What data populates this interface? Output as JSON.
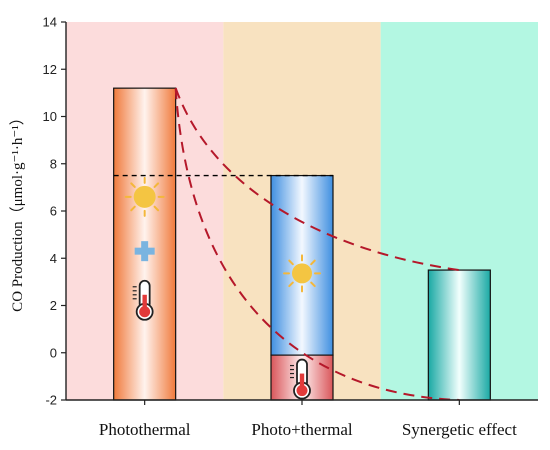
{
  "chart_data": {
    "type": "bar",
    "title": "",
    "xlabel": "",
    "ylabel": "CO Production（μmol·g⁻¹·h⁻¹）",
    "ylim": [
      -2,
      14
    ],
    "yticks": [
      -2,
      0,
      2,
      4,
      6,
      8,
      10,
      12,
      14
    ],
    "categories": [
      "Photothermal",
      "Photo+thermal",
      "Synergetic effect"
    ],
    "bars": [
      {
        "category": "Photothermal",
        "top": 11.2,
        "base": -2,
        "fill": "orange-gradient",
        "icons": [
          "sun-icon",
          "plus-icon",
          "thermometer-icon"
        ]
      },
      {
        "category": "Photo+thermal",
        "segments": [
          {
            "part": "photo",
            "bottom": -0.1,
            "top": 7.5,
            "fill": "blue-gradient",
            "icon": "sun-icon"
          },
          {
            "part": "thermal",
            "bottom": -2,
            "top": -0.1,
            "fill": "red-gradient",
            "icon": "thermometer-icon"
          }
        ]
      },
      {
        "category": "Synergetic effect",
        "top": 3.5,
        "base": -2,
        "fill": "teal-gradient"
      }
    ],
    "reference_line": {
      "y": 7.5,
      "style": "dashed",
      "color": "#000000"
    },
    "background_colors": [
      "#fcdcdc",
      "#f8e2c0",
      "#b3f7e2"
    ],
    "grid": false,
    "legend": "none"
  }
}
